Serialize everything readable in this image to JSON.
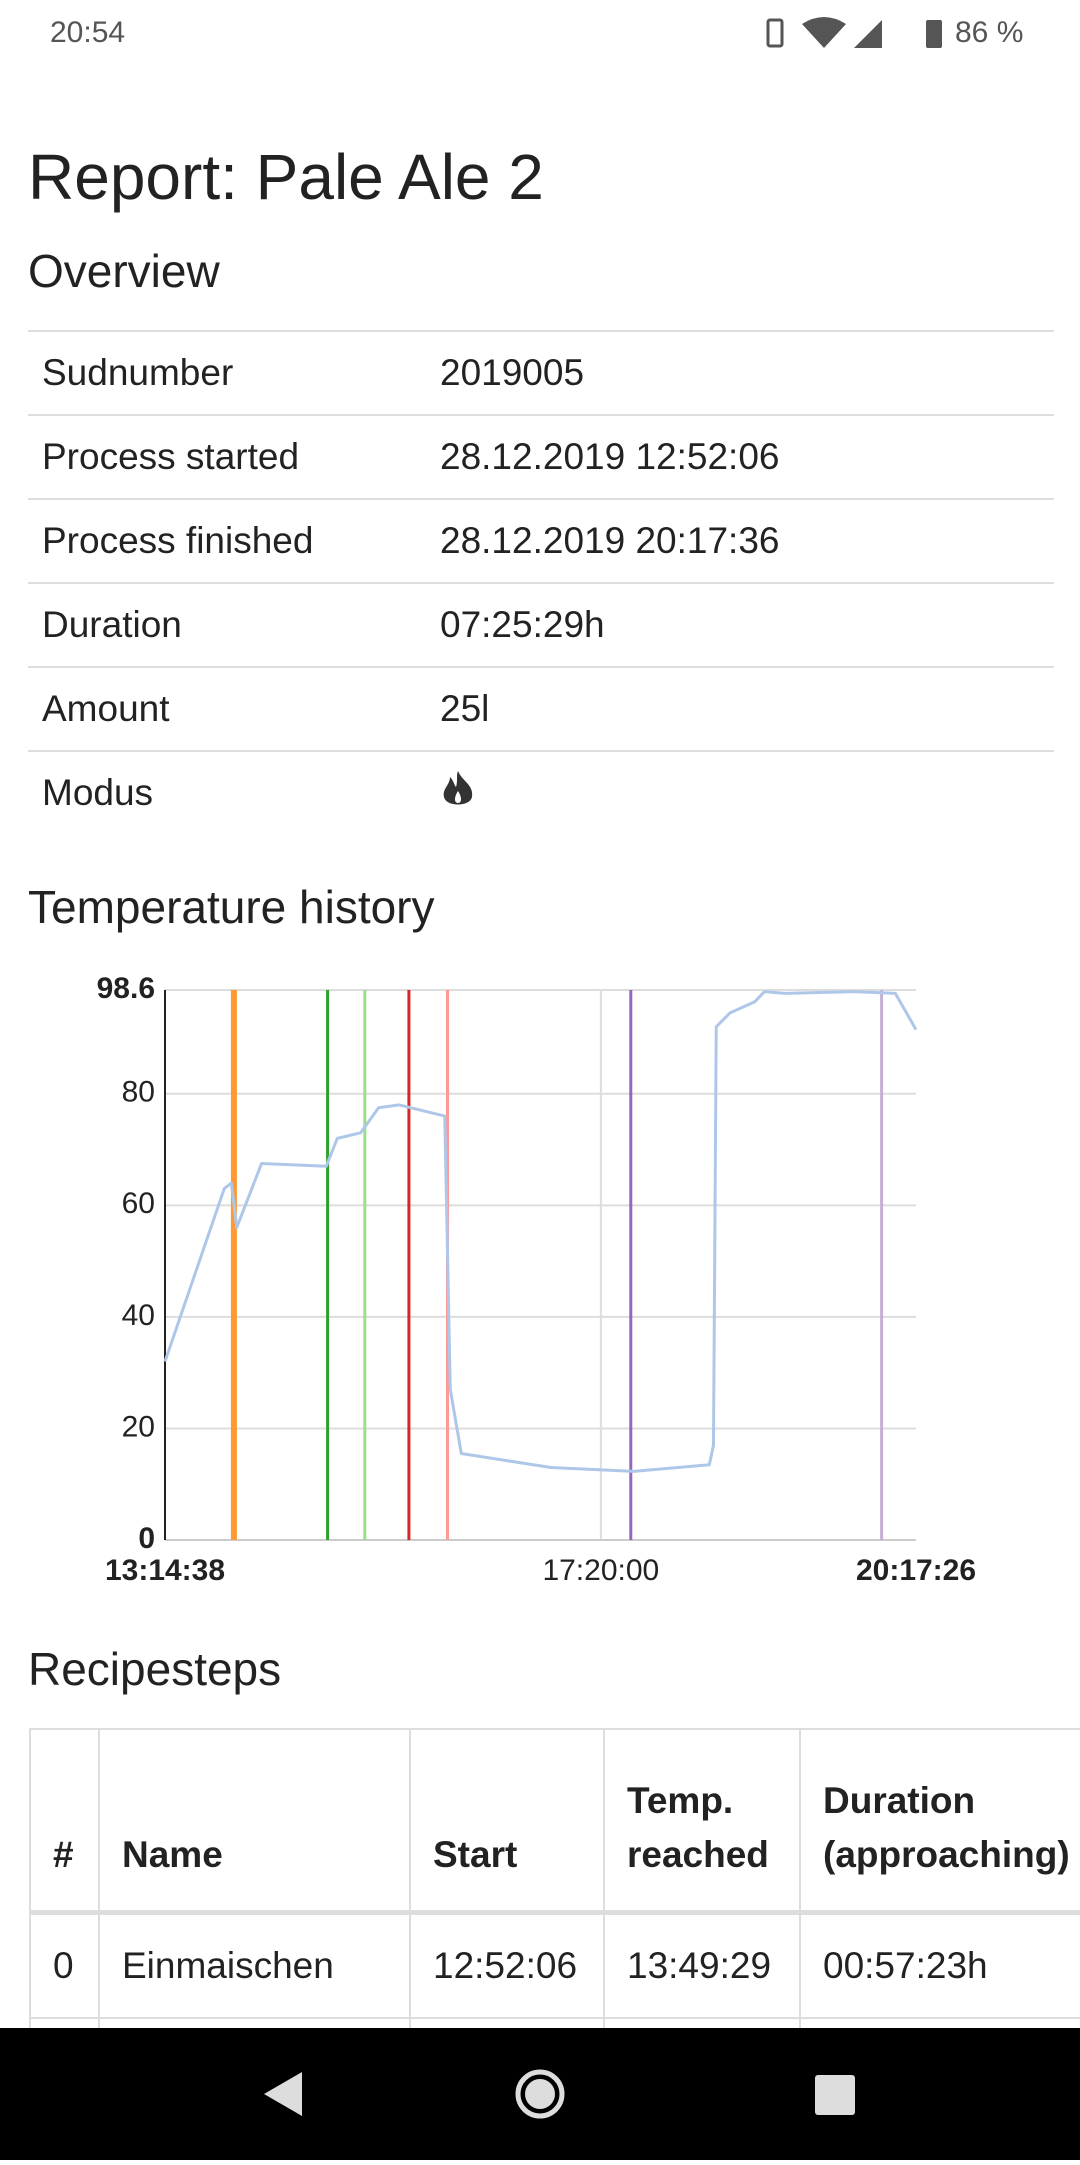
{
  "status_bar": {
    "time": "20:54",
    "battery": "86 %"
  },
  "title": "Report: Pale Ale 2",
  "overview": {
    "heading": "Overview",
    "rows": [
      [
        "Sudnumber",
        "2019005"
      ],
      [
        "Process started",
        "28.12.2019 12:52:06"
      ],
      [
        "Process finished",
        "28.12.2019 20:17:36"
      ],
      [
        "Duration",
        "07:25:29h"
      ],
      [
        "Amount",
        "25l"
      ],
      [
        "Modus"
      ]
    ]
  },
  "chart_data": {
    "type": "line",
    "title": "Temperature history",
    "x": [
      "13:14:38",
      "13:48:00",
      "13:52:00",
      "13:55:00",
      "14:09:00",
      "14:45:24",
      "14:51:37",
      "15:04:48",
      "15:14:53",
      "15:26:32",
      "15:52:08",
      "15:55:14",
      "16:01:26",
      "16:51:52",
      "17:38:25",
      "18:21:05",
      "18:23:25",
      "18:24:58",
      "18:32:43",
      "18:46:41",
      "18:52:07",
      "19:03:45",
      "19:42:33",
      "20:05:49",
      "20:17:26"
    ],
    "values": [
      32,
      63,
      64,
      56,
      67.5,
      67,
      72,
      73,
      77.5,
      78,
      76,
      27,
      15.5,
      13,
      12.3,
      13.5,
      17,
      92,
      94.5,
      96.5,
      98.3,
      98,
      98.3,
      98,
      91.5
    ],
    "color": "#aec7e8",
    "xlim": [
      "13:14:38",
      "20:17:26"
    ],
    "xticks": [
      "13:14:38",
      "17:20:00",
      "20:17:26"
    ],
    "ylim": [
      0,
      98.6
    ],
    "yticks": [
      0,
      20,
      40,
      60,
      80,
      98.6
    ],
    "grid": true,
    "markers": [
      {
        "x": "13:53:26",
        "color": "#ff9933"
      },
      {
        "x": "14:46:11",
        "color": "#2ca02c"
      },
      {
        "x": "15:07:08",
        "color": "#98df8a"
      },
      {
        "x": "15:31:57",
        "color": "#d62728"
      },
      {
        "x": "15:53:41",
        "color": "#ff9896"
      },
      {
        "x": "17:36:52",
        "color": "#9467bd"
      },
      {
        "x": "19:58:04",
        "color": "#c5b0d5"
      }
    ]
  },
  "recipesteps": {
    "heading": "Recipesteps",
    "columns": [
      "#",
      "Name",
      "Start",
      "Temp. reached",
      "Duration (approaching)"
    ],
    "rows": [
      [
        "0",
        "Einmaischen",
        "12:52:06",
        "13:49:29",
        "00:57:23h"
      ]
    ]
  }
}
